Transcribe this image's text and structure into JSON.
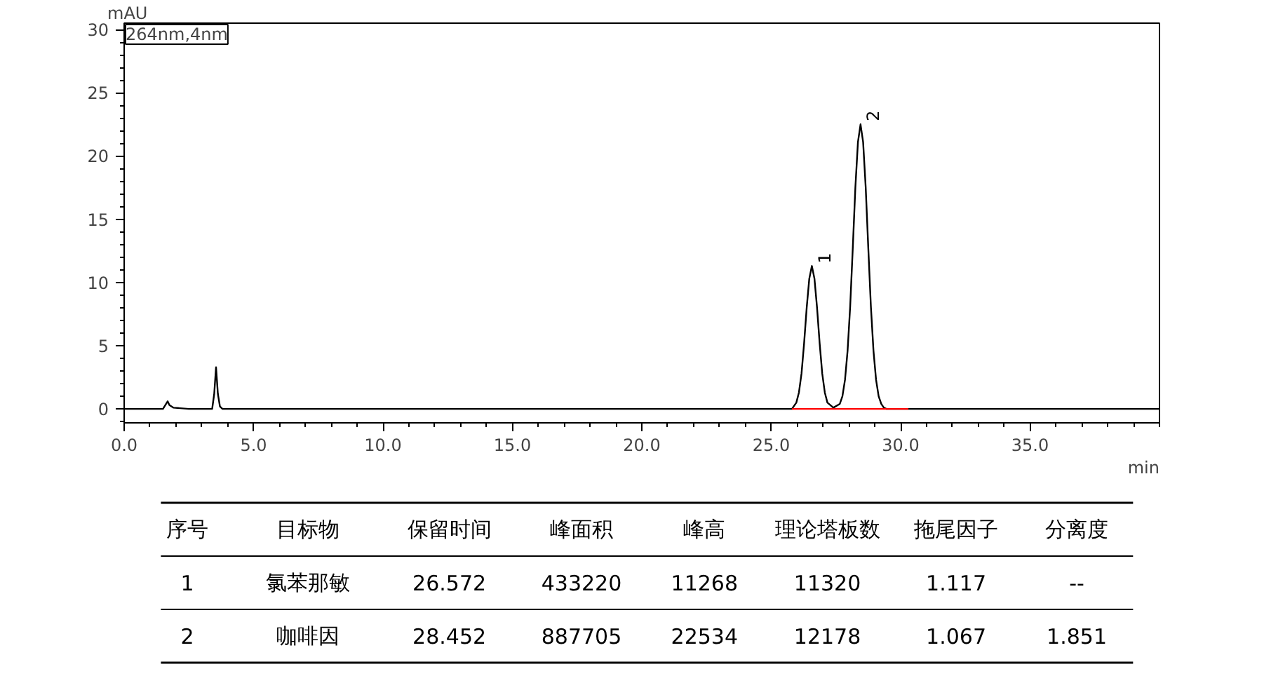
{
  "chart_data": {
    "type": "line",
    "xlabel": "min",
    "ylabel": "mAU",
    "xlim": [
      0,
      40
    ],
    "ylim": [
      -1.1,
      30.5
    ],
    "xticks": [
      {
        "value": 0,
        "label": "0.0"
      },
      {
        "value": 5,
        "label": "5.0"
      },
      {
        "value": 10,
        "label": "10.0"
      },
      {
        "value": 15,
        "label": "15.0"
      },
      {
        "value": 20,
        "label": "20.0"
      },
      {
        "value": 25,
        "label": "25.0"
      },
      {
        "value": 30,
        "label": "30.0"
      },
      {
        "value": 35,
        "label": "35.0"
      }
    ],
    "yticks": [
      0,
      5,
      10,
      15,
      20,
      25,
      30
    ],
    "grid": false,
    "marker": "none",
    "line_style": "solid",
    "series": [
      {
        "color": "#000000",
        "x": [
          0,
          1.5,
          1.62,
          1.68,
          1.75,
          1.9,
          2.5,
          3.4,
          3.48,
          3.55,
          3.62,
          3.7,
          3.8,
          5,
          10,
          15,
          20,
          25,
          25.8,
          25.97,
          26.07,
          26.17,
          26.27,
          26.37,
          26.47,
          26.57,
          26.67,
          26.77,
          26.87,
          26.97,
          27.07,
          27.17,
          27.4,
          27.65,
          27.75,
          27.85,
          27.95,
          28.05,
          28.15,
          28.25,
          28.35,
          28.45,
          28.55,
          28.65,
          28.75,
          28.85,
          28.95,
          29.05,
          29.15,
          29.25,
          29.35,
          29.45,
          30.5,
          35,
          40
        ],
        "values": [
          0,
          0,
          0.4,
          0.6,
          0.3,
          0.1,
          0,
          0,
          1.2,
          3.3,
          1.2,
          0.2,
          0,
          0,
          0,
          0,
          0,
          0,
          0,
          0.5,
          1.3,
          2.8,
          5.2,
          8.0,
          10.3,
          11.3,
          10.3,
          8.0,
          5.2,
          2.8,
          1.3,
          0.5,
          0.1,
          0.4,
          1.0,
          2.3,
          4.6,
          8.1,
          12.7,
          17.5,
          21.1,
          22.5,
          21.1,
          17.5,
          12.7,
          8.1,
          4.6,
          2.3,
          1.0,
          0.4,
          0.1,
          0,
          0,
          0,
          0
        ]
      },
      {
        "color": "#ff0000",
        "x": [
          25.8,
          30.3
        ],
        "values": [
          0,
          0
        ]
      }
    ],
    "annotations": [
      "264nm,4nm",
      {
        "text": "1",
        "x": 26.572,
        "y": 11.27
      },
      {
        "text": "2",
        "x": 28.452,
        "y": 22.53
      },
      "序号",
      "目标物",
      "保留时间",
      "峰面积",
      "峰高",
      "理论塔板数",
      "拖尾因子",
      "分离度",
      "1",
      "氯苯那敏",
      "26.572",
      "433220",
      "11268",
      "11320",
      "1.117",
      "--",
      "2",
      "咖啡因",
      "28.452",
      "887705",
      "22534",
      "12178",
      "1.067",
      "1.851"
    ]
  }
}
